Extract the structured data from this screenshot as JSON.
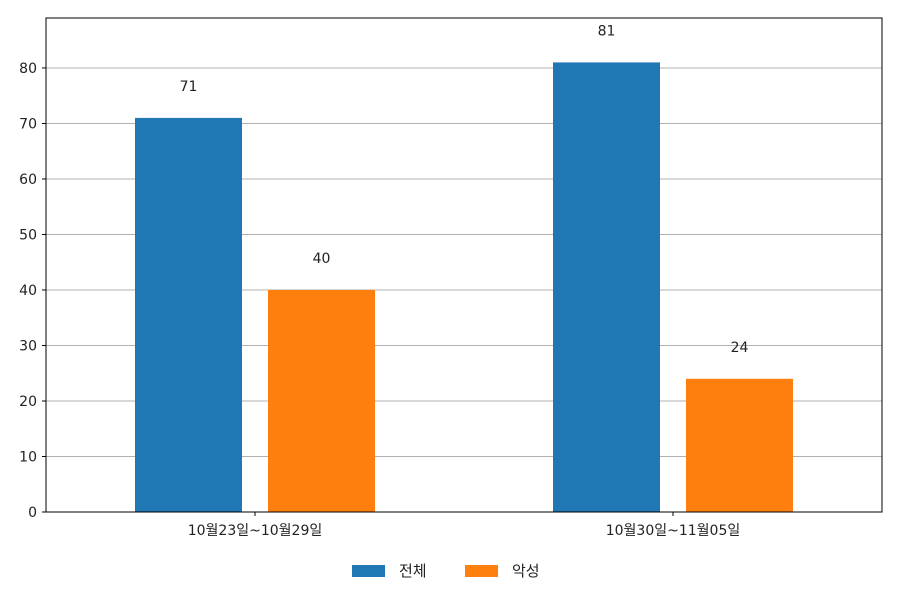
{
  "chart_data": {
    "type": "bar",
    "categories": [
      "10월23일~10월29일",
      "10월30일~11월05일"
    ],
    "series": [
      {
        "name": "전체",
        "values": [
          71,
          81
        ],
        "color": "#1f77b4"
      },
      {
        "name": "악성",
        "values": [
          40,
          24
        ],
        "color": "#ff7f0e"
      }
    ],
    "ylim": [
      0,
      89
    ],
    "yticks": [
      0,
      10,
      20,
      30,
      40,
      50,
      60,
      70,
      80
    ],
    "grid": true,
    "legend_position": "bottom-center",
    "data_labels": true
  }
}
